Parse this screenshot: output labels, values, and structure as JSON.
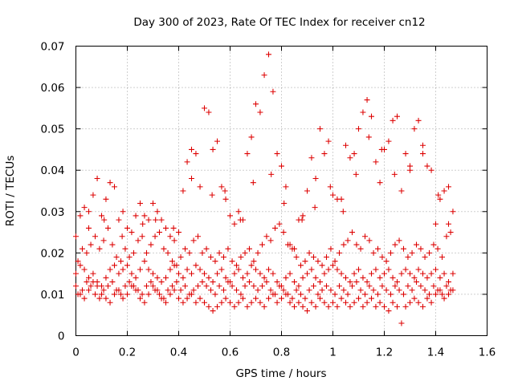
{
  "chart_data": {
    "type": "scatter",
    "title": "Day 300 of 2023, Rate Of TEC Index for receiver cn12",
    "xlabel": "GPS time / hours",
    "ylabel": "ROTI / TECUs",
    "xlim": [
      0,
      1.6
    ],
    "ylim": [
      0,
      0.07
    ],
    "x_ticks": [
      "0",
      "0.2",
      "0.4",
      "0.6",
      "0.8",
      "1",
      "1.2",
      "1.4",
      "1.6"
    ],
    "y_ticks": [
      "0",
      "0.01",
      "0.02",
      "0.03",
      "0.04",
      "0.05",
      "0.06",
      "0.07"
    ],
    "grid": true,
    "marker": "plus",
    "marker_color": "#dd0000",
    "x_step_hours": 0.00833,
    "x_last_hours": 1.467,
    "series": [
      {
        "x": [
          0.0,
          0.017,
          0.033,
          0.05,
          0.067,
          0.083,
          0.1,
          0.117,
          0.133,
          0.15,
          0.167,
          0.183,
          0.2,
          0.217,
          0.233,
          0.25,
          0.267,
          0.283,
          0.3,
          0.317,
          0.333,
          0.35,
          0.367,
          0.383,
          0.4,
          0.417,
          0.433,
          0.45,
          0.467,
          0.483,
          0.5,
          0.517,
          0.533,
          0.55,
          0.567,
          0.583,
          0.6,
          0.617,
          0.633,
          0.65,
          0.667,
          0.683,
          0.7,
          0.717,
          0.733,
          0.75,
          0.767,
          0.783,
          0.8,
          0.817,
          0.833,
          0.85,
          0.867,
          0.883,
          0.9,
          0.917,
          0.933,
          0.95,
          0.967,
          0.983,
          1.0,
          1.017,
          1.033,
          1.05,
          1.067,
          1.083,
          1.1,
          1.117,
          1.133,
          1.15,
          1.167,
          1.183,
          1.2,
          1.217,
          1.233,
          1.25,
          1.267,
          1.283,
          1.3,
          1.317,
          1.333,
          1.35,
          1.367,
          1.383,
          1.4,
          1.417,
          1.433,
          1.45,
          1.467
        ],
        "y": [
          0.024,
          0.029,
          0.031,
          0.03,
          0.034,
          0.038,
          0.029,
          0.033,
          0.037,
          0.036,
          0.028,
          0.03,
          0.026,
          0.025,
          0.029,
          0.032,
          0.029,
          0.028,
          0.032,
          0.03,
          0.028,
          0.026,
          0.024,
          0.023,
          0.025,
          0.035,
          0.042,
          0.045,
          0.044,
          0.036,
          0.055,
          0.054,
          0.045,
          0.047,
          0.036,
          0.033,
          0.029,
          0.027,
          0.03,
          0.028,
          0.044,
          0.048,
          0.056,
          0.054,
          0.063,
          0.068,
          0.059,
          0.044,
          0.041,
          0.036,
          0.022,
          0.021,
          0.028,
          0.029,
          0.035,
          0.043,
          0.038,
          0.05,
          0.044,
          0.047,
          0.034,
          0.033,
          0.033,
          0.046,
          0.043,
          0.044,
          0.05,
          0.054,
          0.057,
          0.053,
          0.042,
          0.037,
          0.045,
          0.047,
          0.052,
          0.053,
          0.035,
          0.044,
          0.04,
          0.05,
          0.052,
          0.046,
          0.041,
          0.04,
          0.027,
          0.033,
          0.035,
          0.036,
          0.03
        ]
      },
      {
        "x": [
          0.008,
          0.025,
          0.042,
          0.058,
          0.075,
          0.092,
          0.108,
          0.125,
          0.142,
          0.158,
          0.175,
          0.192,
          0.208,
          0.225,
          0.242,
          0.258,
          0.275,
          0.292,
          0.308,
          0.325,
          0.342,
          0.358,
          0.375,
          0.392,
          0.408,
          0.425,
          0.442,
          0.458,
          0.475,
          0.492,
          0.508,
          0.525,
          0.542,
          0.558,
          0.575,
          0.592,
          0.608,
          0.625,
          0.642,
          0.658,
          0.675,
          0.692,
          0.708,
          0.725,
          0.742,
          0.758,
          0.775,
          0.792,
          0.808,
          0.825,
          0.842,
          0.858,
          0.875,
          0.892,
          0.908,
          0.925,
          0.942,
          0.958,
          0.975,
          0.992,
          1.008,
          1.025,
          1.042,
          1.058,
          1.075,
          1.092,
          1.108,
          1.125,
          1.142,
          1.158,
          1.175,
          1.192,
          1.208,
          1.225,
          1.242,
          1.258,
          1.275,
          1.292,
          1.308,
          1.325,
          1.342,
          1.358,
          1.375,
          1.392,
          1.408,
          1.425,
          1.442,
          1.458
        ],
        "y": [
          0.018,
          0.021,
          0.02,
          0.022,
          0.024,
          0.021,
          0.023,
          0.026,
          0.022,
          0.019,
          0.018,
          0.021,
          0.019,
          0.02,
          0.023,
          0.024,
          0.02,
          0.022,
          0.024,
          0.025,
          0.021,
          0.02,
          0.018,
          0.017,
          0.019,
          0.021,
          0.02,
          0.023,
          0.024,
          0.02,
          0.021,
          0.019,
          0.018,
          0.02,
          0.019,
          0.021,
          0.018,
          0.017,
          0.019,
          0.02,
          0.021,
          0.018,
          0.02,
          0.022,
          0.024,
          0.023,
          0.026,
          0.027,
          0.025,
          0.022,
          0.021,
          0.019,
          0.017,
          0.018,
          0.02,
          0.019,
          0.018,
          0.017,
          0.019,
          0.021,
          0.018,
          0.02,
          0.022,
          0.023,
          0.025,
          0.022,
          0.021,
          0.024,
          0.023,
          0.02,
          0.021,
          0.019,
          0.018,
          0.02,
          0.022,
          0.023,
          0.021,
          0.019,
          0.02,
          0.022,
          0.021,
          0.019,
          0.02,
          0.022,
          0.021,
          0.019,
          0.024,
          0.025
        ]
      },
      {
        "x": [
          0.0,
          0.017,
          0.033,
          0.05,
          0.067,
          0.083,
          0.1,
          0.117,
          0.133,
          0.15,
          0.167,
          0.183,
          0.2,
          0.217,
          0.233,
          0.25,
          0.267,
          0.283,
          0.3,
          0.317,
          0.333,
          0.35,
          0.367,
          0.383,
          0.4,
          0.417,
          0.433,
          0.45,
          0.467,
          0.483,
          0.5,
          0.517,
          0.533,
          0.55,
          0.567,
          0.583,
          0.6,
          0.617,
          0.633,
          0.65,
          0.667,
          0.683,
          0.7,
          0.717,
          0.733,
          0.75,
          0.767,
          0.783,
          0.8,
          0.817,
          0.833,
          0.85,
          0.867,
          0.883,
          0.9,
          0.917,
          0.933,
          0.95,
          0.967,
          0.983,
          1.0,
          1.017,
          1.033,
          1.05,
          1.067,
          1.083,
          1.1,
          1.117,
          1.133,
          1.15,
          1.167,
          1.183,
          1.2,
          1.217,
          1.233,
          1.25,
          1.267,
          1.283,
          1.3,
          1.317,
          1.333,
          1.35,
          1.367,
          1.383,
          1.4,
          1.417,
          1.433,
          1.45,
          1.467
        ],
        "y": [
          0.015,
          0.017,
          0.016,
          0.014,
          0.015,
          0.013,
          0.012,
          0.014,
          0.016,
          0.017,
          0.015,
          0.016,
          0.017,
          0.015,
          0.014,
          0.016,
          0.018,
          0.016,
          0.015,
          0.014,
          0.013,
          0.014,
          0.016,
          0.017,
          0.015,
          0.014,
          0.016,
          0.015,
          0.017,
          0.016,
          0.015,
          0.014,
          0.013,
          0.015,
          0.016,
          0.014,
          0.013,
          0.015,
          0.016,
          0.014,
          0.015,
          0.017,
          0.016,
          0.015,
          0.014,
          0.016,
          0.015,
          0.013,
          0.012,
          0.014,
          0.015,
          0.013,
          0.012,
          0.014,
          0.015,
          0.016,
          0.014,
          0.013,
          0.015,
          0.016,
          0.017,
          0.016,
          0.015,
          0.014,
          0.013,
          0.015,
          0.016,
          0.014,
          0.013,
          0.015,
          0.016,
          0.014,
          0.015,
          0.016,
          0.014,
          0.013,
          0.015,
          0.016,
          0.015,
          0.014,
          0.016,
          0.015,
          0.014,
          0.015,
          0.016,
          0.014,
          0.015,
          0.013,
          0.015
        ]
      },
      {
        "x": [
          0.008,
          0.025,
          0.042,
          0.058,
          0.075,
          0.092,
          0.108,
          0.125,
          0.142,
          0.158,
          0.175,
          0.192,
          0.208,
          0.225,
          0.242,
          0.258,
          0.275,
          0.292,
          0.308,
          0.325,
          0.342,
          0.358,
          0.375,
          0.392,
          0.408,
          0.425,
          0.442,
          0.458,
          0.475,
          0.492,
          0.508,
          0.525,
          0.542,
          0.558,
          0.575,
          0.592,
          0.608,
          0.625,
          0.642,
          0.658,
          0.675,
          0.692,
          0.708,
          0.725,
          0.742,
          0.758,
          0.775,
          0.792,
          0.808,
          0.825,
          0.842,
          0.858,
          0.875,
          0.892,
          0.908,
          0.925,
          0.942,
          0.958,
          0.975,
          0.992,
          1.008,
          1.025,
          1.042,
          1.058,
          1.075,
          1.092,
          1.108,
          1.125,
          1.142,
          1.158,
          1.175,
          1.192,
          1.208,
          1.225,
          1.242,
          1.258,
          1.275,
          1.292,
          1.308,
          1.325,
          1.342,
          1.358,
          1.375,
          1.392,
          1.408,
          1.425,
          1.442,
          1.458
        ],
        "y": [
          0.01,
          0.011,
          0.013,
          0.012,
          0.01,
          0.009,
          0.011,
          0.012,
          0.013,
          0.011,
          0.01,
          0.012,
          0.013,
          0.012,
          0.011,
          0.01,
          0.012,
          0.013,
          0.011,
          0.01,
          0.009,
          0.011,
          0.012,
          0.013,
          0.011,
          0.012,
          0.01,
          0.011,
          0.012,
          0.013,
          0.012,
          0.011,
          0.01,
          0.012,
          0.011,
          0.013,
          0.012,
          0.011,
          0.01,
          0.012,
          0.013,
          0.012,
          0.011,
          0.012,
          0.013,
          0.011,
          0.01,
          0.012,
          0.011,
          0.01,
          0.009,
          0.011,
          0.01,
          0.009,
          0.011,
          0.012,
          0.01,
          0.011,
          0.012,
          0.011,
          0.01,
          0.012,
          0.011,
          0.01,
          0.012,
          0.013,
          0.011,
          0.01,
          0.012,
          0.011,
          0.01,
          0.012,
          0.011,
          0.01,
          0.012,
          0.011,
          0.01,
          0.012,
          0.011,
          0.013,
          0.012,
          0.011,
          0.01,
          0.012,
          0.011,
          0.01,
          0.012,
          0.011
        ]
      },
      {
        "x": [
          0.0,
          0.017,
          0.033,
          0.05,
          0.067,
          0.083,
          0.1,
          0.117,
          0.133,
          0.15,
          0.167,
          0.183,
          0.2,
          0.217,
          0.233,
          0.25,
          0.267,
          0.283,
          0.3,
          0.317,
          0.333,
          0.35,
          0.367,
          0.383,
          0.4,
          0.417,
          0.433,
          0.45,
          0.467,
          0.483,
          0.5,
          0.517,
          0.533,
          0.55,
          0.567,
          0.583,
          0.6,
          0.617,
          0.633,
          0.65,
          0.667,
          0.683,
          0.7,
          0.717,
          0.733,
          0.75,
          0.767,
          0.783,
          0.8,
          0.817,
          0.833,
          0.85,
          0.867,
          0.883,
          0.9,
          0.917,
          0.933,
          0.95,
          0.967,
          0.983,
          1.0,
          1.017,
          1.033,
          1.05,
          1.067,
          1.083,
          1.1,
          1.117,
          1.133,
          1.15,
          1.167,
          1.183,
          1.2,
          1.217,
          1.233,
          1.25,
          1.267,
          1.283,
          1.3,
          1.317,
          1.333,
          1.35,
          1.367,
          1.383,
          1.4,
          1.417,
          1.433,
          1.45,
          1.467
        ],
        "y": [
          0.012,
          0.01,
          0.009,
          0.011,
          0.013,
          0.012,
          0.01,
          0.009,
          0.008,
          0.01,
          0.011,
          0.009,
          0.01,
          0.012,
          0.011,
          0.009,
          0.008,
          0.01,
          0.012,
          0.011,
          0.009,
          0.008,
          0.01,
          0.011,
          0.009,
          0.008,
          0.009,
          0.01,
          0.008,
          0.009,
          0.008,
          0.007,
          0.006,
          0.007,
          0.008,
          0.009,
          0.008,
          0.007,
          0.008,
          0.009,
          0.007,
          0.008,
          0.009,
          0.008,
          0.007,
          0.009,
          0.01,
          0.008,
          0.009,
          0.01,
          0.008,
          0.007,
          0.008,
          0.007,
          0.006,
          0.008,
          0.007,
          0.009,
          0.008,
          0.007,
          0.008,
          0.007,
          0.009,
          0.008,
          0.007,
          0.008,
          0.009,
          0.007,
          0.008,
          0.009,
          0.007,
          0.008,
          0.007,
          0.006,
          0.008,
          0.007,
          0.003,
          0.007,
          0.008,
          0.009,
          0.008,
          0.007,
          0.009,
          0.008,
          0.01,
          0.011,
          0.009,
          0.01,
          0.011
        ]
      },
      {
        "x": [
          0.05,
          0.11,
          0.18,
          0.26,
          0.31,
          0.38,
          0.45,
          0.53,
          0.58,
          0.64,
          0.69,
          0.76,
          0.81,
          0.88,
          0.93,
          0.99,
          1.04,
          1.09,
          1.14,
          1.19,
          1.24,
          1.3,
          1.35,
          1.41,
          1.45
        ],
        "y": [
          0.026,
          0.028,
          0.024,
          0.027,
          0.028,
          0.026,
          0.038,
          0.034,
          0.035,
          0.028,
          0.037,
          0.039,
          0.032,
          0.028,
          0.031,
          0.036,
          0.03,
          0.039,
          0.048,
          0.045,
          0.039,
          0.041,
          0.044,
          0.034,
          0.027
        ]
      }
    ]
  }
}
